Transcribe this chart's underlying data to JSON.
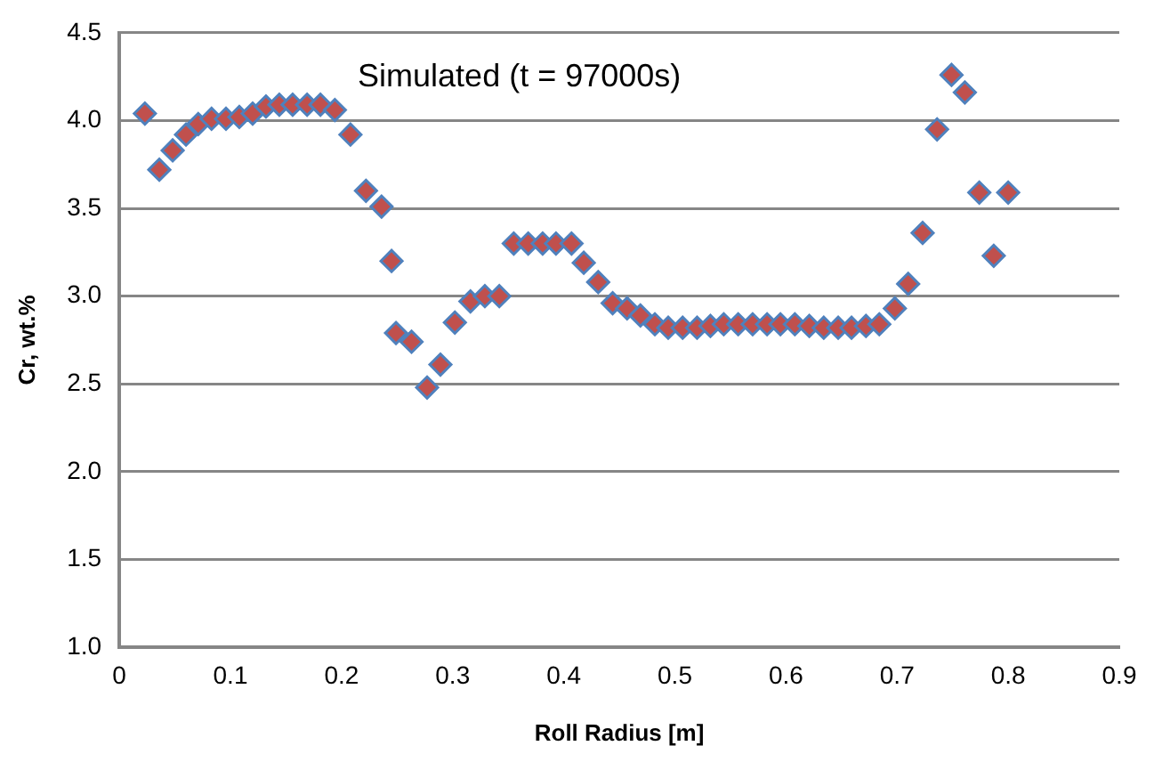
{
  "chart_data": {
    "type": "scatter",
    "xlabel": "Roll Radius [m]",
    "ylabel": "Cr, wt.%",
    "annotations": [
      "Simulated (t = 97000s)"
    ],
    "x": [
      0.023,
      0.036,
      0.048,
      0.06,
      0.071,
      0.083,
      0.096,
      0.108,
      0.12,
      0.132,
      0.144,
      0.156,
      0.169,
      0.181,
      0.194,
      0.208,
      0.222,
      0.236,
      0.245,
      0.249,
      0.263,
      0.277,
      0.289,
      0.302,
      0.316,
      0.329,
      0.342,
      0.355,
      0.368,
      0.381,
      0.393,
      0.407,
      0.418,
      0.431,
      0.444,
      0.457,
      0.469,
      0.482,
      0.494,
      0.507,
      0.52,
      0.532,
      0.544,
      0.557,
      0.57,
      0.583,
      0.595,
      0.608,
      0.621,
      0.634,
      0.647,
      0.659,
      0.672,
      0.684,
      0.698,
      0.71,
      0.723,
      0.736,
      0.749,
      0.761,
      0.774,
      0.787,
      0.8
    ],
    "series": [
      {
        "color": "#c0504d",
        "values": [
          4.04,
          3.72,
          3.83,
          3.92,
          3.98,
          4.01,
          4.01,
          4.02,
          4.04,
          4.08,
          4.09,
          4.09,
          4.09,
          4.09,
          4.06,
          3.92,
          3.6,
          3.51,
          3.2,
          2.79,
          2.74,
          2.48,
          2.61,
          2.85,
          2.97,
          3.0,
          3.0,
          3.3,
          3.3,
          3.3,
          3.3,
          3.3,
          3.19,
          3.08,
          2.96,
          2.93,
          2.89,
          2.84,
          2.82,
          2.82,
          2.82,
          2.83,
          2.84,
          2.84,
          2.84,
          2.84,
          2.84,
          2.84,
          2.83,
          2.82,
          2.82,
          2.82,
          2.83,
          2.84,
          2.93,
          3.07,
          3.36,
          3.95,
          4.26,
          4.16,
          3.59,
          3.23,
          3.59
        ]
      }
    ],
    "xlim": [
      0,
      0.9
    ],
    "xticks": [
      {
        "value": 0,
        "label": "0"
      },
      0.1,
      0.2,
      0.3,
      0.4,
      0.5,
      0.6,
      0.7,
      0.8,
      0.9
    ],
    "ylim": [
      1,
      4.5
    ],
    "yticks": [
      {
        "value": 1,
        "label": "1.0"
      },
      1.5,
      {
        "value": 2,
        "label": "2.0"
      },
      2.5,
      {
        "value": 3,
        "label": "3.0"
      },
      3.5,
      {
        "value": 4,
        "label": "4.0"
      },
      4.5
    ],
    "grid": "y",
    "legend": false,
    "marker": "diamond"
  }
}
